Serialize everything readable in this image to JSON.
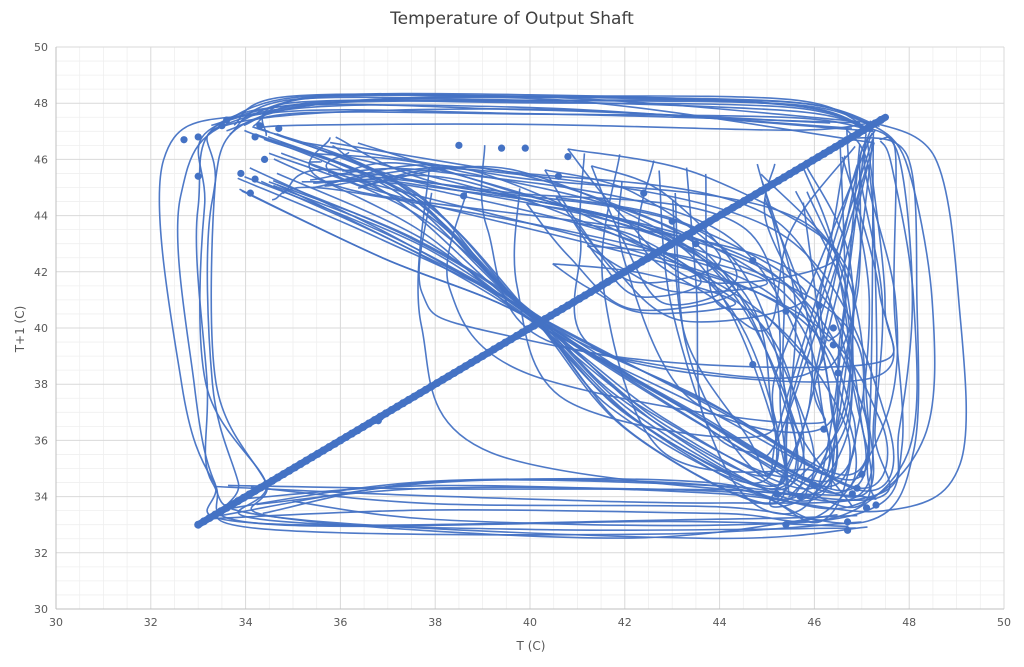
{
  "chart_data": {
    "type": "scatter",
    "title": "Temperature of Output Shaft",
    "xlabel": "T (C)",
    "ylabel": "T+1 (C)",
    "xlim": [
      30,
      50
    ],
    "ylim": [
      30,
      50
    ],
    "x_ticks": [
      "30",
      "32",
      "34",
      "36",
      "38",
      "40",
      "42",
      "44",
      "46",
      "48",
      "50"
    ],
    "y_ticks": [
      "30",
      "32",
      "34",
      "36",
      "38",
      "40",
      "42",
      "44",
      "46",
      "48",
      "50"
    ],
    "grid": true,
    "minor_grid": true,
    "legend": "none",
    "series_color": "#4472c4",
    "series": [
      {
        "values_note": "",
        "diagonal_range": [
          33.0,
          47.5
        ],
        "points": [
          [
            32.7,
            46.7
          ],
          [
            33.0,
            46.8
          ],
          [
            33.0,
            45.4
          ],
          [
            33.5,
            47.2
          ],
          [
            33.6,
            47.4
          ],
          [
            33.9,
            45.5
          ],
          [
            34.1,
            44.8
          ],
          [
            34.2,
            45.3
          ],
          [
            34.2,
            46.8
          ],
          [
            34.3,
            47.2
          ],
          [
            34.4,
            46.0
          ],
          [
            34.7,
            47.1
          ],
          [
            36.8,
            36.7
          ],
          [
            38.6,
            44.7
          ],
          [
            38.5,
            46.5
          ],
          [
            39.4,
            46.4
          ],
          [
            39.9,
            46.4
          ],
          [
            40.6,
            45.4
          ],
          [
            40.8,
            46.1
          ],
          [
            42.4,
            44.8
          ],
          [
            43.0,
            43.8
          ],
          [
            43.5,
            43.0
          ],
          [
            44.7,
            42.4
          ],
          [
            44.7,
            38.7
          ],
          [
            45.2,
            34.1
          ],
          [
            45.4,
            40.6
          ],
          [
            45.4,
            33.0
          ],
          [
            45.7,
            34.0
          ],
          [
            46.0,
            34.4
          ],
          [
            46.1,
            40.8
          ],
          [
            46.2,
            36.4
          ],
          [
            46.4,
            39.4
          ],
          [
            46.4,
            40.0
          ],
          [
            46.5,
            38.4
          ],
          [
            46.7,
            33.1
          ],
          [
            46.7,
            32.8
          ],
          [
            46.8,
            34.1
          ],
          [
            46.9,
            34.3
          ],
          [
            47.0,
            34.8
          ],
          [
            47.1,
            33.6
          ],
          [
            47.3,
            33.7
          ]
        ]
      }
    ]
  }
}
